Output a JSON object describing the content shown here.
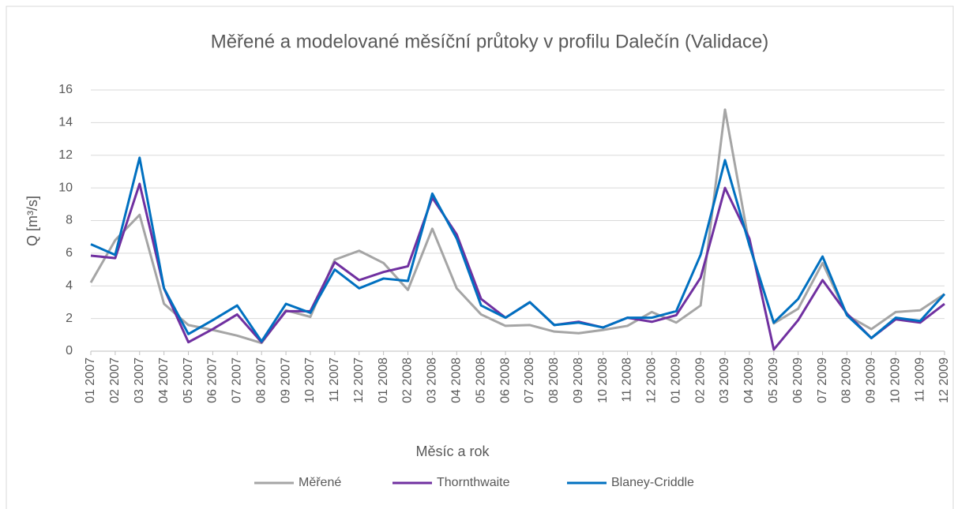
{
  "chart_data": {
    "type": "line",
    "title": "Měřené a modelované měsíční průtoky v profilu Dalečín (Validace)",
    "x_label": "Měsíc a rok",
    "y_label": "Q [m³/s]",
    "categories": [
      "01 2007",
      "02 2007",
      "03 2007",
      "04 2007",
      "05 2007",
      "06 2007",
      "07 2007",
      "08 2007",
      "09 2007",
      "10 2007",
      "11 2007",
      "12 2007",
      "01 2008",
      "02 2008",
      "03 2008",
      "04 2008",
      "05 2008",
      "06 2008",
      "07 2008",
      "08 2008",
      "09 2008",
      "10 2008",
      "11 2008",
      "12 2008",
      "01 2009",
      "02 2009",
      "03 2009",
      "04 2009",
      "05 2009",
      "06 2009",
      "07 2009",
      "08 2009",
      "09 2009",
      "10 2009",
      "11 2009",
      "12 2009"
    ],
    "series": [
      {
        "name": "Měřené",
        "color": "#a5a5a5",
        "values": [
          4.2,
          6.8,
          8.35,
          2.9,
          1.6,
          1.3,
          0.95,
          0.5,
          2.5,
          2.1,
          5.6,
          6.15,
          5.4,
          3.75,
          7.5,
          3.85,
          2.25,
          1.55,
          1.6,
          1.2,
          1.1,
          1.3,
          1.55,
          2.4,
          1.75,
          2.8,
          14.8,
          6.5,
          1.7,
          2.6,
          5.4,
          2.2,
          1.35,
          2.4,
          2.5,
          3.5
        ]
      },
      {
        "name": "Thornthwaite",
        "color": "#7030a0",
        "values": [
          5.85,
          5.7,
          10.25,
          3.85,
          0.55,
          1.35,
          2.25,
          0.55,
          2.45,
          2.45,
          5.45,
          4.35,
          4.85,
          5.2,
          9.4,
          7.15,
          3.2,
          2.05,
          3.0,
          1.6,
          1.8,
          1.45,
          2.05,
          1.8,
          2.2,
          4.5,
          10.0,
          6.9,
          0.1,
          1.9,
          4.35,
          2.3,
          0.8,
          1.95,
          1.75,
          2.9
        ]
      },
      {
        "name": "Blaney-Criddle",
        "color": "#0070c0",
        "values": [
          6.55,
          5.9,
          11.85,
          3.85,
          1.05,
          1.9,
          2.8,
          0.6,
          2.9,
          2.35,
          5.0,
          3.85,
          4.45,
          4.3,
          9.65,
          6.9,
          2.8,
          2.05,
          3.0,
          1.6,
          1.75,
          1.45,
          2.05,
          2.05,
          2.45,
          5.9,
          11.7,
          6.5,
          1.75,
          3.2,
          5.8,
          2.2,
          0.8,
          2.05,
          1.85,
          3.5
        ]
      }
    ],
    "ylim": [
      0,
      16
    ],
    "yticks": [
      0,
      2,
      4,
      6,
      8,
      10,
      12,
      14,
      16
    ],
    "grid": true,
    "legend": "bottom"
  }
}
